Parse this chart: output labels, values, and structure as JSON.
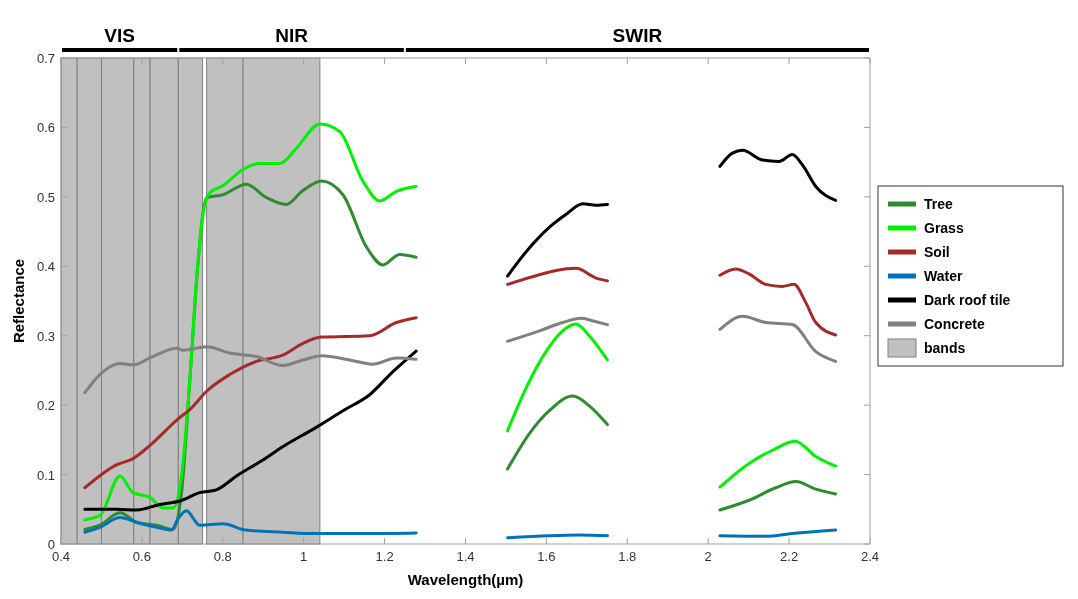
{
  "chart_data": {
    "type": "line",
    "xlabel": "Wavelength(µm)",
    "ylabel": "Reflectance",
    "xlim": [
      0.4,
      2.4
    ],
    "xticks": [
      0.4,
      0.6,
      0.8,
      1,
      1.2,
      1.4,
      1.6,
      1.8,
      2,
      2.2,
      2.4
    ],
    "ylim": [
      0,
      0.7
    ],
    "yticks": [
      0,
      0.1,
      0.2,
      0.3,
      0.4,
      0.5,
      0.6,
      0.7
    ],
    "grid": false,
    "legend": "right",
    "line_style": "solid",
    "marker": "none",
    "annotations": [
      "VIS",
      "NIR",
      "SWIR",
      "bands"
    ],
    "bands": [
      {
        "axis": "x",
        "from": 0.4,
        "to": 0.44,
        "color": "#c0c0c0"
      },
      {
        "axis": "x",
        "from": 0.44,
        "to": 0.5,
        "color": "#c0c0c0"
      },
      {
        "axis": "x",
        "from": 0.5,
        "to": 0.58,
        "color": "#c0c0c0"
      },
      {
        "axis": "x",
        "from": 0.58,
        "to": 0.62,
        "color": "#c0c0c0"
      },
      {
        "axis": "x",
        "from": 0.62,
        "to": 0.69,
        "color": "#c0c0c0"
      },
      {
        "axis": "x",
        "from": 0.69,
        "to": 0.75,
        "color": "#c0c0c0"
      },
      {
        "axis": "x",
        "from": 0.76,
        "to": 0.85,
        "color": "#c0c0c0"
      },
      {
        "axis": "x",
        "from": 0.85,
        "to": 1.04,
        "color": "#c0c0c0"
      }
    ],
    "series": [
      {
        "name": "Tree",
        "color": "#2e8b2e",
        "x": [
          0.459,
          0.496,
          0.546,
          0.588,
          0.637,
          0.677,
          0.698,
          0.719,
          0.738,
          0.76,
          0.8,
          0.858,
          0.908,
          0.957,
          0.998,
          1.044,
          1.097,
          1.155,
          1.196,
          1.237,
          1.278,
          1.4,
          1.504,
          1.558,
          1.607,
          1.665,
          1.706,
          1.751,
          1.9,
          2.029,
          2.101,
          2.167,
          2.217,
          2.266,
          2.315
        ],
        "values": [
          0.021,
          0.027,
          0.045,
          0.031,
          0.027,
          0.021,
          0.074,
          0.24,
          0.4,
          0.499,
          0.503,
          0.518,
          0.499,
          0.489,
          0.509,
          0.523,
          0.503,
          0.428,
          0.402,
          0.417,
          0.413,
          null,
          0.108,
          0.159,
          0.192,
          0.213,
          0.199,
          0.172,
          null,
          0.049,
          0.063,
          0.081,
          0.09,
          0.079,
          0.072
        ]
      },
      {
        "name": "Grass",
        "color": "#00ee00",
        "x": [
          0.459,
          0.496,
          0.546,
          0.578,
          0.62,
          0.652,
          0.677,
          0.698,
          0.719,
          0.735,
          0.751,
          0.768,
          0.8,
          0.849,
          0.891,
          0.941,
          0.982,
          1.04,
          1.089,
          1.146,
          1.188,
          1.229,
          1.278,
          1.4,
          1.504,
          1.55,
          1.599,
          1.64,
          1.673,
          1.706,
          1.751,
          1.9,
          2.029,
          2.101,
          2.159,
          2.215,
          2.266,
          2.315
        ],
        "values": [
          0.035,
          0.041,
          0.098,
          0.074,
          0.067,
          0.052,
          0.052,
          0.098,
          0.24,
          0.38,
          0.475,
          0.506,
          0.516,
          0.539,
          0.548,
          0.548,
          0.57,
          0.605,
          0.594,
          0.523,
          0.494,
          0.508,
          0.515,
          null,
          0.163,
          0.225,
          0.277,
          0.307,
          0.317,
          0.3,
          0.265,
          null,
          0.082,
          0.116,
          0.135,
          0.148,
          0.126,
          0.112
        ]
      },
      {
        "name": "Soil",
        "color": "#a52a2a",
        "x": [
          0.459,
          0.537,
          0.578,
          0.62,
          0.689,
          0.719,
          0.76,
          0.817,
          0.883,
          0.948,
          0.998,
          1.044,
          1.163,
          1.229,
          1.278,
          1.4,
          1.504,
          1.566,
          1.624,
          1.673,
          1.723,
          1.751,
          1.9,
          2.029,
          2.068,
          2.101,
          2.142,
          2.183,
          2.212,
          2.241,
          2.266,
          2.315
        ],
        "values": [
          0.081,
          0.114,
          0.123,
          0.142,
          0.18,
          0.194,
          0.22,
          0.244,
          0.263,
          0.272,
          0.289,
          0.298,
          0.3,
          0.319,
          0.326,
          null,
          0.374,
          0.385,
          0.394,
          0.397,
          0.383,
          0.379,
          null,
          0.387,
          0.396,
          0.389,
          0.374,
          0.371,
          0.374,
          0.348,
          0.319,
          0.301
        ]
      },
      {
        "name": "Water",
        "color": "#0072bd",
        "x": [
          0.459,
          0.496,
          0.546,
          0.588,
          0.637,
          0.673,
          0.689,
          0.71,
          0.743,
          0.8,
          0.858,
          0.948,
          1.031,
          1.155,
          1.278,
          1.4,
          1.504,
          1.607,
          1.68,
          1.751,
          1.9,
          2.029,
          2.142,
          2.208,
          2.315
        ],
        "values": [
          0.017,
          0.024,
          0.038,
          0.031,
          0.024,
          0.02,
          0.036,
          0.048,
          0.027,
          0.029,
          0.02,
          0.017,
          0.015,
          0.015,
          0.016,
          null,
          0.009,
          0.012,
          0.013,
          0.012,
          null,
          0.012,
          0.011,
          0.015,
          0.02
        ]
      },
      {
        "name": "Dark roof tile",
        "color": "#000000",
        "x": [
          0.459,
          0.537,
          0.588,
          0.644,
          0.694,
          0.743,
          0.784,
          0.834,
          0.899,
          0.948,
          1.031,
          1.097,
          1.163,
          1.22,
          1.278,
          1.4,
          1.504,
          1.55,
          1.607,
          1.649,
          1.69,
          1.723,
          1.751,
          1.9,
          2.029,
          2.06,
          2.085,
          2.134,
          2.175,
          2.208,
          2.233,
          2.266,
          2.315
        ],
        "values": [
          0.05,
          0.05,
          0.049,
          0.057,
          0.062,
          0.074,
          0.078,
          0.098,
          0.121,
          0.14,
          0.168,
          0.192,
          0.215,
          0.248,
          0.278,
          null,
          0.386,
          0.421,
          0.456,
          0.475,
          0.49,
          0.488,
          0.489,
          null,
          0.544,
          0.563,
          0.567,
          0.553,
          0.551,
          0.561,
          0.546,
          0.515,
          0.495
        ]
      },
      {
        "name": "Concrete",
        "color": "#808080",
        "x": [
          0.459,
          0.496,
          0.546,
          0.578,
          0.62,
          0.686,
          0.701,
          0.76,
          0.817,
          0.883,
          0.948,
          0.998,
          1.044,
          1.114,
          1.17,
          1.229,
          1.278,
          1.4,
          1.504,
          1.583,
          1.64,
          1.686,
          1.723,
          1.751,
          1.9,
          2.029,
          2.085,
          2.142,
          2.208,
          2.266,
          2.315
        ],
        "values": [
          0.218,
          0.244,
          0.26,
          0.258,
          0.268,
          0.282,
          0.279,
          0.284,
          0.275,
          0.27,
          0.257,
          0.265,
          0.271,
          0.265,
          0.259,
          0.268,
          0.266,
          null,
          0.292,
          0.307,
          0.319,
          0.325,
          0.32,
          0.316,
          null,
          0.309,
          0.328,
          0.319,
          0.316,
          0.277,
          0.263
        ]
      }
    ]
  }
}
